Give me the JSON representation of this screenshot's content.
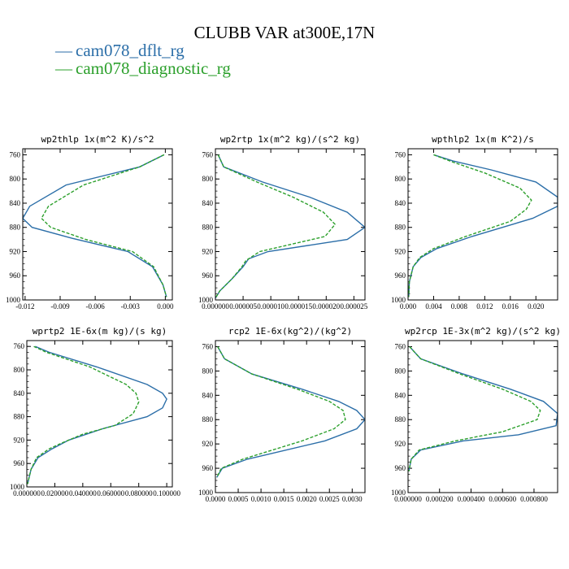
{
  "figure": {
    "title": "CLUBB VAR at300E,17N",
    "legend": [
      {
        "label": "cam078_dflt_rg",
        "color": "#2b6ea8"
      },
      {
        "label": "cam078_diagnostic_rg",
        "color": "#2ca02c"
      }
    ]
  },
  "chart_data": [
    {
      "type": "line",
      "title": "wp2thlp  1x(m^2 K)/s^2",
      "xlim": [
        -0.0122,
        0.0006
      ],
      "ylim": [
        1000,
        750
      ],
      "xticks": [
        -0.012,
        -0.009,
        -0.006,
        -0.003,
        0.0
      ],
      "xtick_labels": [
        "-0.012",
        "-0.009",
        "-0.006",
        "-0.003",
        "0.000"
      ],
      "yticks": [
        760,
        800,
        840,
        880,
        920,
        960,
        1000
      ],
      "ytick_labels": [
        "760",
        "800",
        "840",
        "880",
        "920",
        "960",
        "1000"
      ],
      "series": [
        {
          "name": "cam078_dflt_rg",
          "style": "solid",
          "x": [
            -0.0001,
            -0.0022,
            -0.0085,
            -0.0116,
            -0.0122,
            -0.0114,
            -0.008,
            -0.0032,
            -0.0011,
            -0.0002,
            0.0001
          ],
          "y": [
            760,
            780,
            810,
            845,
            865,
            880,
            898,
            920,
            945,
            975,
            995
          ]
        },
        {
          "name": "cam078_diagnostic_rg",
          "style": "dashed",
          "x": [
            -0.0001,
            -0.0022,
            -0.007,
            -0.01,
            -0.0106,
            -0.0098,
            -0.0068,
            -0.0028,
            -0.001,
            -0.0002,
            0.0001
          ],
          "y": [
            760,
            780,
            810,
            845,
            865,
            880,
            900,
            920,
            945,
            975,
            995
          ]
        }
      ]
    },
    {
      "type": "line",
      "title": "wp2rtp  1x(m^2 kg)/(s^2 kg)",
      "xlim": [
        0,
        2.7e-05
      ],
      "ylim": [
        1000,
        750
      ],
      "xticks": [
        0,
        5e-06,
        1e-05,
        1.5e-05,
        2e-05,
        2.5e-05
      ],
      "xtick_labels": [
        "0.000000",
        "0.000005",
        "0.000010",
        "0.000015",
        "0.000020",
        "0.000025"
      ],
      "yticks": [
        760,
        800,
        840,
        880,
        920,
        960,
        1000
      ],
      "ytick_labels": [
        "760",
        "800",
        "840",
        "880",
        "920",
        "960",
        "1000"
      ],
      "series": [
        {
          "name": "cam078_dflt_rg",
          "style": "solid",
          "x": [
            5e-07,
            1.5e-06,
            8.5e-06,
            1.7e-05,
            2.38e-05,
            2.7e-05,
            2.38e-05,
            9.5e-06,
            6e-06,
            5e-06,
            3e-06,
            8e-07,
            0
          ],
          "y": [
            760,
            780,
            805,
            830,
            855,
            880,
            900,
            920,
            932,
            945,
            965,
            985,
            997
          ]
        },
        {
          "name": "cam078_diagnostic_rg",
          "style": "dashed",
          "x": [
            5e-07,
            1.5e-06,
            7.5e-06,
            1.4e-05,
            1.95e-05,
            2.16e-05,
            1.98e-05,
            8e-06,
            5.5e-06,
            4.8e-06,
            3e-06,
            8e-07,
            0
          ],
          "y": [
            760,
            780,
            805,
            830,
            855,
            875,
            895,
            920,
            935,
            945,
            965,
            985,
            997
          ]
        }
      ]
    },
    {
      "type": "line",
      "title": "wpthlp2  1x(m K^2)/s",
      "xlim": [
        0,
        0.0234
      ],
      "ylim": [
        1000,
        750
      ],
      "xticks": [
        0,
        0.004,
        0.008,
        0.012,
        0.016,
        0.02
      ],
      "xtick_labels": [
        "0.000",
        "0.004",
        "0.008",
        "0.012",
        "0.016",
        "0.020"
      ],
      "yticks": [
        760,
        800,
        840,
        880,
        920,
        960,
        1000
      ],
      "ytick_labels": [
        "760",
        "800",
        "840",
        "880",
        "920",
        "960",
        "1000"
      ],
      "series": [
        {
          "name": "cam078_dflt_rg",
          "style": "solid",
          "x": [
            0.004,
            0.007,
            0.013,
            0.02,
            0.0234,
            0.0234,
            0.0195,
            0.01,
            0.0045,
            0.002,
            0.0008,
            0.0002,
            0.0001
          ],
          "y": [
            760,
            770,
            785,
            805,
            830,
            845,
            865,
            895,
            915,
            930,
            945,
            970,
            995
          ]
        },
        {
          "name": "cam078_diagnostic_rg",
          "style": "dashed",
          "x": [
            0.004,
            0.007,
            0.012,
            0.0175,
            0.0193,
            0.0185,
            0.016,
            0.009,
            0.004,
            0.0018,
            0.0008,
            0.0002,
            0.0001
          ],
          "y": [
            760,
            772,
            790,
            815,
            835,
            850,
            870,
            895,
            915,
            930,
            945,
            970,
            995
          ]
        }
      ]
    },
    {
      "type": "line",
      "title": "wprtp2  1E-6x(m kg)/(s kg)",
      "xlim": [
        0,
        0.104
      ],
      "ylim": [
        1000,
        750
      ],
      "xticks": [
        0,
        0.02,
        0.04,
        0.06,
        0.08,
        0.1
      ],
      "xtick_labels": [
        "0.000000",
        "0.020000",
        "0.040000",
        "0.060000",
        "0.080000",
        "0.100000"
      ],
      "yticks": [
        760,
        800,
        840,
        880,
        920,
        960,
        1000
      ],
      "ytick_labels": [
        "760",
        "800",
        "840",
        "880",
        "920",
        "960",
        "1000"
      ],
      "series": [
        {
          "name": "cam078_dflt_rg",
          "style": "solid",
          "x": [
            0.006,
            0.016,
            0.05,
            0.086,
            0.097,
            0.1,
            0.097,
            0.086,
            0.055,
            0.03,
            0.018,
            0.008,
            0.003,
            0.0005
          ],
          "y": [
            760,
            770,
            795,
            825,
            840,
            850,
            865,
            880,
            900,
            920,
            935,
            950,
            970,
            995
          ]
        },
        {
          "name": "cam078_diagnostic_rg",
          "style": "dashed",
          "x": [
            0.005,
            0.014,
            0.045,
            0.071,
            0.078,
            0.08,
            0.076,
            0.063,
            0.04,
            0.025,
            0.016,
            0.007,
            0.003,
            0.0005
          ],
          "y": [
            760,
            770,
            795,
            825,
            840,
            855,
            875,
            895,
            910,
            925,
            935,
            950,
            970,
            995
          ]
        }
      ]
    },
    {
      "type": "line",
      "title": "rcp2  1E-6x(kg^2)/(kg^2)",
      "xlim": [
        0,
        0.00328
      ],
      "ylim": [
        1000,
        750
      ],
      "xticks": [
        0,
        0.0005,
        0.001,
        0.0015,
        0.002,
        0.0025,
        0.003
      ],
      "xtick_labels": [
        "0.0000",
        "0.0005",
        "0.0010",
        "0.0015",
        "0.0020",
        "0.0025",
        "0.0030"
      ],
      "yticks": [
        760,
        800,
        840,
        880,
        920,
        960,
        1000
      ],
      "ytick_labels": [
        "760",
        "800",
        "840",
        "880",
        "920",
        "960",
        "1000"
      ],
      "series": [
        {
          "name": "cam078_dflt_rg",
          "style": "solid",
          "x": [
            5e-05,
            0.0002,
            0.0008,
            0.0019,
            0.0027,
            0.0031,
            0.00328,
            0.0031,
            0.0024,
            0.0007,
            0.00015,
            3e-05
          ],
          "y": [
            760,
            780,
            805,
            830,
            850,
            865,
            880,
            895,
            915,
            945,
            960,
            975
          ]
        },
        {
          "name": "cam078_diagnostic_rg",
          "style": "dashed",
          "x": [
            5e-05,
            0.0002,
            0.0008,
            0.0018,
            0.0025,
            0.0028,
            0.00285,
            0.0026,
            0.0019,
            0.0006,
            0.00013,
            3e-05
          ],
          "y": [
            760,
            780,
            805,
            830,
            850,
            865,
            880,
            895,
            915,
            945,
            960,
            975
          ]
        }
      ]
    },
    {
      "type": "line",
      "title": "wp2rcp  1E-3x(m^2 kg)/(s^2 kg)",
      "xlim": [
        0,
        0.00095
      ],
      "ylim": [
        1000,
        750
      ],
      "xticks": [
        0,
        0.0002,
        0.0004,
        0.0006,
        0.0008
      ],
      "xtick_labels": [
        "0.000000",
        "0.000200",
        "0.000400",
        "0.000600",
        "0.000800"
      ],
      "yticks": [
        760,
        800,
        840,
        880,
        920,
        960,
        1000
      ],
      "ytick_labels": [
        "760",
        "800",
        "840",
        "880",
        "920",
        "960",
        "1000"
      ],
      "series": [
        {
          "name": "cam078_dflt_rg",
          "style": "solid",
          "x": [
            1e-05,
            8e-05,
            0.00035,
            0.00065,
            0.00086,
            0.00095,
            0.00094,
            0.0007,
            0.00035,
            8e-05,
            2e-05,
            5e-06
          ],
          "y": [
            760,
            780,
            805,
            830,
            850,
            870,
            890,
            905,
            915,
            930,
            945,
            965
          ]
        },
        {
          "name": "cam078_diagnostic_rg",
          "style": "dashed",
          "x": [
            1e-05,
            8e-05,
            0.00033,
            0.0006,
            0.00078,
            0.00084,
            0.00082,
            0.0006,
            0.0003,
            7e-05,
            2e-05,
            5e-06
          ],
          "y": [
            760,
            780,
            805,
            830,
            850,
            865,
            880,
            900,
            915,
            930,
            945,
            965
          ]
        }
      ]
    }
  ]
}
